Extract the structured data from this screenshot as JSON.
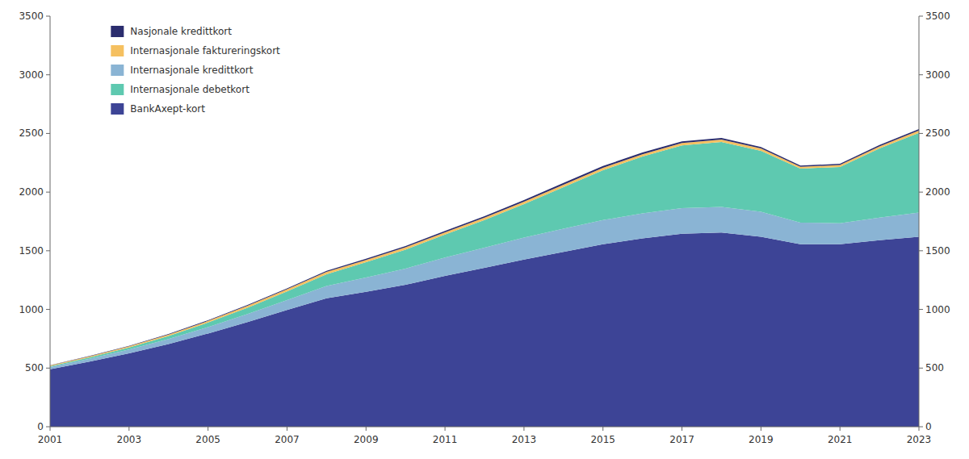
{
  "chart_data": {
    "type": "area",
    "stacked": true,
    "x": [
      2001,
      2002,
      2003,
      2004,
      2005,
      2006,
      2007,
      2008,
      2009,
      2010,
      2011,
      2012,
      2013,
      2014,
      2015,
      2016,
      2017,
      2018,
      2019,
      2020,
      2021,
      2022,
      2023
    ],
    "series": [
      {
        "name": "BankAxept-kort",
        "color": "#3d4496",
        "values": [
          490,
          555,
          625,
          705,
          795,
          893,
          995,
          1095,
          1150,
          1210,
          1285,
          1355,
          1425,
          1490,
          1555,
          1605,
          1645,
          1655,
          1620,
          1555,
          1555,
          1590,
          1620
        ]
      },
      {
        "name": "Internasjonale kredittkort",
        "color": "#8ab4d4",
        "values": [
          18,
          25,
          33,
          43,
          55,
          68,
          85,
          105,
          122,
          138,
          158,
          172,
          188,
          198,
          207,
          213,
          218,
          218,
          212,
          185,
          180,
          192,
          205
        ]
      },
      {
        "name": "Internasjonale debetkort",
        "color": "#5ec9b0",
        "values": [
          8,
          12,
          18,
          26,
          38,
          54,
          74,
          100,
          130,
          162,
          195,
          235,
          285,
          355,
          425,
          485,
          535,
          555,
          520,
          460,
          480,
          590,
          680
        ]
      },
      {
        "name": "Internasjonale faktureringskort",
        "color": "#f5c060",
        "values": [
          6,
          8,
          10,
          12,
          14,
          16,
          18,
          20,
          20,
          20,
          20,
          20,
          20,
          20,
          20,
          20,
          20,
          20,
          20,
          16,
          16,
          18,
          20
        ]
      },
      {
        "name": "Nasjonale kredittkort",
        "color": "#2b2d6e",
        "values": [
          2,
          3,
          4,
          5,
          6,
          7,
          8,
          9,
          10,
          11,
          12,
          13,
          14,
          15,
          15,
          15,
          14,
          13,
          12,
          10,
          10,
          11,
          12
        ]
      }
    ],
    "xlim": [
      2001,
      2023
    ],
    "xticks": [
      2001,
      2003,
      2005,
      2007,
      2009,
      2011,
      2013,
      2015,
      2017,
      2019,
      2021,
      2023
    ],
    "ylim": [
      0,
      3500
    ],
    "yticks": [
      0,
      500,
      1000,
      1500,
      2000,
      2500,
      3000,
      3500
    ],
    "y2lim": [
      0,
      3500
    ],
    "y2ticks": [
      0,
      500,
      1000,
      1500,
      2000,
      2500,
      3000,
      3500
    ],
    "legend": "upper left"
  }
}
